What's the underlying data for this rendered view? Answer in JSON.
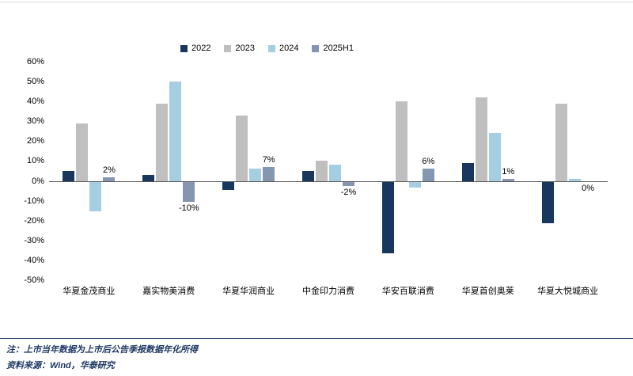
{
  "chart_data": {
    "type": "bar",
    "title": "",
    "categories": [
      "华夏金茂商业",
      "嘉实物美消费",
      "华夏华润商业",
      "中金印力消费",
      "华安百联消费",
      "华夏首创奥莱",
      "华夏大悦城商业"
    ],
    "series": [
      {
        "name": "2022",
        "color": "#17375e",
        "values": [
          5,
          3,
          -4,
          5,
          -36,
          9,
          -21
        ]
      },
      {
        "name": "2023",
        "color": "#bfbfbf",
        "values": [
          29,
          39,
          33,
          10,
          40,
          42,
          39
        ]
      },
      {
        "name": "2024",
        "color": "#a6cee3",
        "values": [
          -15,
          50,
          6,
          8,
          -3,
          24,
          1
        ]
      },
      {
        "name": "2025H1",
        "color": "#8496b0",
        "values": [
          2,
          -10,
          7,
          -2,
          6,
          1,
          0
        ]
      }
    ],
    "annotations": {
      "series": "2025H1",
      "labels": [
        "2%",
        "-10%",
        "7%",
        "-2%",
        "6%",
        "1%",
        "0%"
      ]
    },
    "ylim": [
      -50,
      60
    ],
    "ytick_step": 10,
    "ytick_labels": [
      "60%",
      "50%",
      "40%",
      "30%",
      "20%",
      "10%",
      "0%",
      "-10%",
      "-20%",
      "-30%",
      "-40%",
      "-50%"
    ],
    "legend_position": "top",
    "grid": false
  },
  "footer": {
    "note": "注：上市当年数据为上市后公告季报数据年化所得",
    "source": "资料来源：Wind，华泰研究"
  },
  "colors": {
    "axis_line": "#595959",
    "footer_text": "#1f3864",
    "top_rule": "#d9d9d9"
  }
}
